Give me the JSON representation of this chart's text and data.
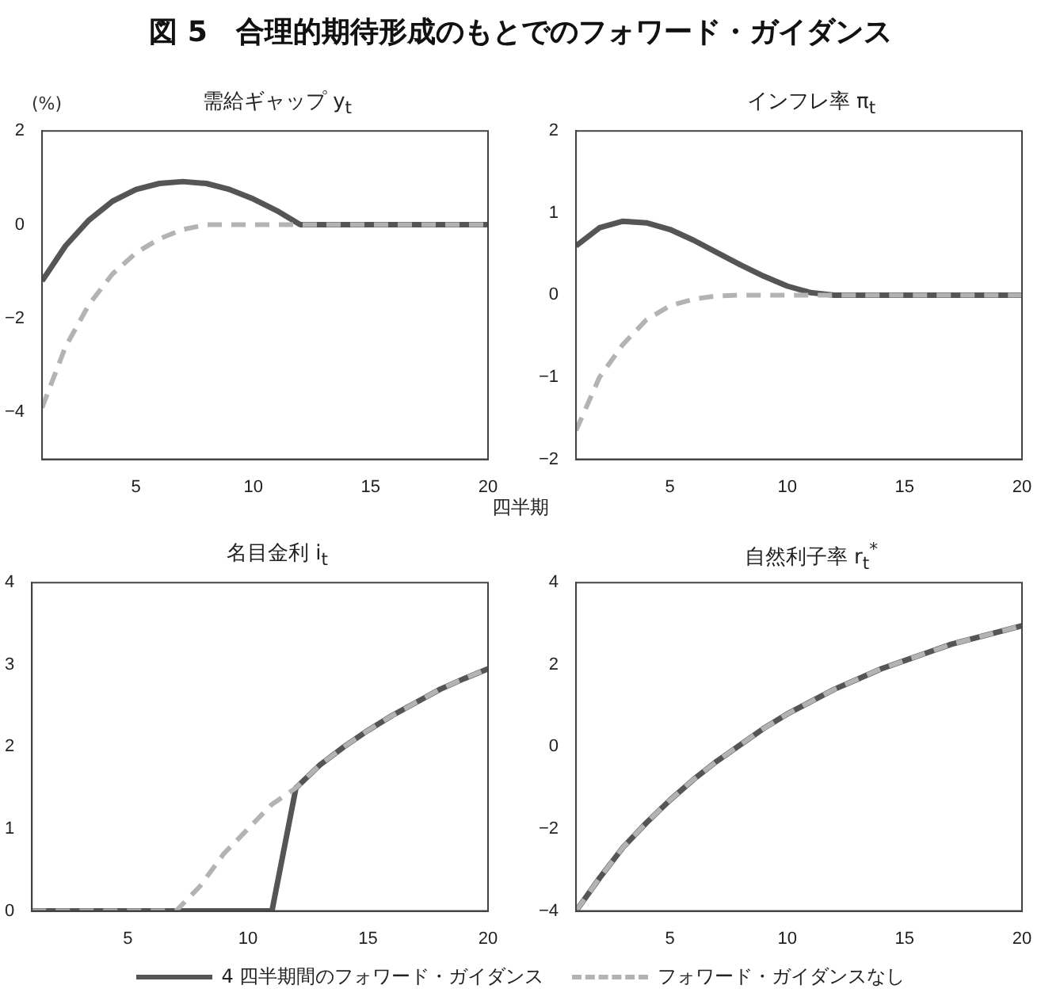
{
  "chart_data": [
    {
      "type": "line",
      "title": "需給ギャップ y$_{t}$",
      "ylabel": "(%)",
      "xlabel": "四半期",
      "annotations": [
        "図 5　合理的期待形成のもとでのフォワード・ガイダンス"
      ],
      "legend": "bottom",
      "marker": "none",
      "grid": false,
      "x": [
        1,
        2,
        3,
        4,
        5,
        6,
        7,
        8,
        9,
        10,
        11,
        12,
        13,
        14,
        15,
        16,
        17,
        18,
        19,
        20
      ],
      "xlim": [
        1,
        20
      ],
      "xticks": [
        5,
        10,
        15,
        20
      ],
      "ylim": [
        -5,
        2
      ],
      "yticks": [
        -4,
        -2,
        0,
        2
      ],
      "series": [
        {
          "name": "4 四半期間のフォワード・ガイダンス",
          "color": "#555555",
          "line_style": "solid",
          "values": [
            -1.2,
            -0.45,
            0.1,
            0.5,
            0.75,
            0.88,
            0.92,
            0.88,
            0.75,
            0.55,
            0.3,
            0,
            0,
            0,
            0,
            0,
            0,
            0,
            0,
            0
          ]
        },
        {
          "name": "フォワード・ガイダンスなし",
          "color": "#b3b3b3",
          "line_style": "dashed",
          "values": [
            -3.9,
            -2.6,
            -1.7,
            -1.05,
            -0.6,
            -0.3,
            -0.1,
            0,
            0,
            0,
            0,
            0,
            0,
            0,
            0,
            0,
            0,
            0,
            0,
            0
          ]
        }
      ]
    },
    {
      "type": "line",
      "title": "インフレ率 π$_{t}$",
      "marker": "none",
      "grid": false,
      "x": [
        1,
        2,
        3,
        4,
        5,
        6,
        7,
        8,
        9,
        10,
        11,
        12,
        13,
        14,
        15,
        16,
        17,
        18,
        19,
        20
      ],
      "xlim": [
        1,
        20
      ],
      "xticks": [
        5,
        10,
        15,
        20
      ],
      "ylim": [
        -2,
        2
      ],
      "yticks": [
        -2,
        -1,
        0,
        1,
        2
      ],
      "series": [
        {
          "color": "#555555",
          "line_style": "solid",
          "values": [
            0.6,
            0.82,
            0.9,
            0.88,
            0.8,
            0.67,
            0.52,
            0.37,
            0.23,
            0.11,
            0.03,
            0,
            0,
            0,
            0,
            0,
            0,
            0,
            0,
            0
          ]
        },
        {
          "color": "#b3b3b3",
          "line_style": "dashed",
          "values": [
            -1.65,
            -1.0,
            -0.6,
            -0.3,
            -0.13,
            -0.05,
            -0.01,
            0,
            0,
            0,
            0,
            0,
            0,
            0,
            0,
            0,
            0,
            0,
            0,
            0
          ]
        }
      ]
    },
    {
      "type": "line",
      "title": "名目金利 i$_{t}$",
      "marker": "none",
      "grid": false,
      "x": [
        1,
        2,
        3,
        4,
        5,
        6,
        7,
        8,
        9,
        10,
        11,
        12,
        13,
        14,
        15,
        16,
        17,
        18,
        19,
        20
      ],
      "xlim": [
        1,
        20
      ],
      "xticks": [
        5,
        10,
        15,
        20
      ],
      "ylim": [
        0,
        4
      ],
      "yticks": [
        0,
        1,
        2,
        3,
        4
      ],
      "series": [
        {
          "color": "#555555",
          "line_style": "solid",
          "values": [
            0,
            0,
            0,
            0,
            0,
            0,
            0,
            0,
            0,
            0,
            0,
            1.5,
            1.78,
            2.0,
            2.2,
            2.38,
            2.54,
            2.7,
            2.83,
            2.95
          ]
        },
        {
          "color": "#b3b3b3",
          "line_style": "dashed",
          "values": [
            0,
            0,
            0,
            0,
            0,
            0,
            0,
            0.3,
            0.7,
            1.0,
            1.3,
            1.5,
            1.78,
            2.0,
            2.2,
            2.38,
            2.54,
            2.7,
            2.83,
            2.95
          ]
        }
      ]
    },
    {
      "type": "line",
      "title": "自然利子率 r$_{t}$$^{*}$",
      "marker": "none",
      "grid": false,
      "x": [
        1,
        2,
        3,
        4,
        5,
        6,
        7,
        8,
        9,
        10,
        11,
        12,
        13,
        14,
        15,
        16,
        17,
        18,
        19,
        20
      ],
      "xlim": [
        1,
        20
      ],
      "xticks": [
        5,
        10,
        15,
        20
      ],
      "ylim": [
        -4,
        4
      ],
      "yticks": [
        -4,
        -2,
        0,
        2,
        4
      ],
      "series": [
        {
          "color": "#555555",
          "line_style": "solid",
          "values": [
            -4,
            -3.2,
            -2.45,
            -1.85,
            -1.3,
            -0.8,
            -0.35,
            0.05,
            0.45,
            0.8,
            1.1,
            1.4,
            1.65,
            1.9,
            2.1,
            2.3,
            2.5,
            2.65,
            2.8,
            2.95
          ]
        },
        {
          "color": "#b3b3b3",
          "line_style": "dashed",
          "values": [
            -4,
            -3.2,
            -2.45,
            -1.85,
            -1.3,
            -0.8,
            -0.35,
            0.05,
            0.45,
            0.8,
            1.1,
            1.4,
            1.65,
            1.9,
            2.1,
            2.3,
            2.5,
            2.65,
            2.8,
            2.95
          ]
        }
      ]
    }
  ]
}
